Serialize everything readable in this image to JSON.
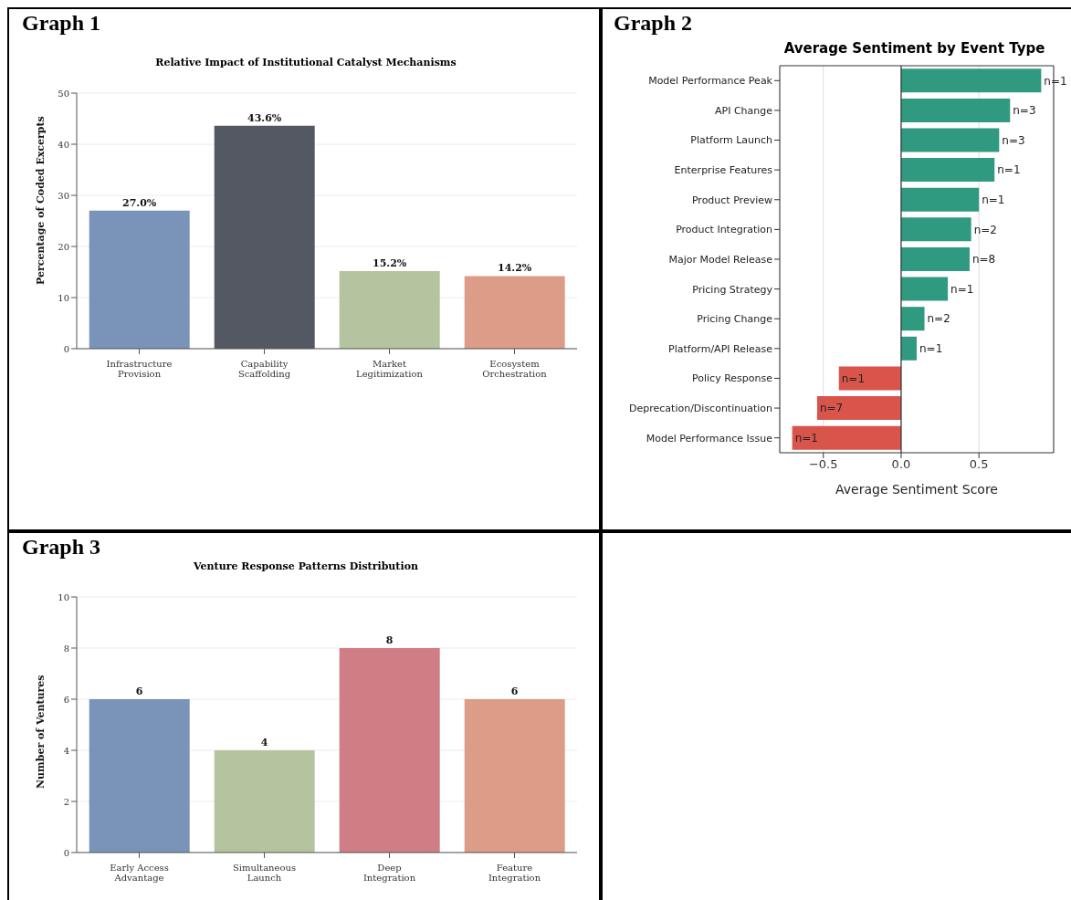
{
  "chart_data": [
    {
      "type": "bar",
      "annotations": [
        "Graph 1"
      ],
      "title": "Relative Impact of Institutional Catalyst Mechanisms",
      "ylabel": "Percentage of Coded Excerpts",
      "categories": [
        "Infrastructure\nProvision",
        "Capability\nScaffolding",
        "Market\nLegitimization",
        "Ecosystem\nOrchestration"
      ],
      "values": [
        27.0,
        43.6,
        15.2,
        14.2
      ],
      "value_labels": [
        "27.0%",
        "43.6%",
        "15.2%",
        "14.2%"
      ],
      "colors": [
        "#7a93b9",
        "#545863",
        "#b4c49f",
        "#dd9c88"
      ],
      "ylim": [
        0,
        50
      ],
      "yticks": [
        0,
        10,
        20,
        30,
        40,
        50
      ],
      "grid": "y"
    },
    {
      "type": "bar",
      "orientation": "horizontal",
      "title": "Average Sentiment by Event Type",
      "xlabel": "Average Sentiment Score",
      "categories": [
        "Model Performance Peak",
        "API Change",
        "Platform Launch",
        "Enterprise Features",
        "Product Preview",
        "Product Integration",
        "Major Model Release",
        "Pricing Strategy",
        "Pricing Change",
        "Platform/API Release",
        "Policy Response",
        "Deprecation/Discontinuation",
        "Model Performance Issue"
      ],
      "values": [
        0.9,
        0.7,
        0.63,
        0.6,
        0.5,
        0.45,
        0.44,
        0.3,
        0.15,
        0.1,
        -0.4,
        -0.54,
        -0.7
      ],
      "colors": [
        "#2f9a80",
        "#2f9a80",
        "#2f9a80",
        "#2f9a80",
        "#2f9a80",
        "#2f9a80",
        "#2f9a80",
        "#2f9a80",
        "#2f9a80",
        "#2f9a80",
        "#d9554b",
        "#d9554b",
        "#d9554b"
      ],
      "xlim": [
        -0.78,
        0.98
      ],
      "xticks": [
        {
          "value": -0.5,
          "label": "−0.5"
        },
        {
          "value": 0,
          "label": "0.0"
        },
        {
          "value": 0.5,
          "label": "0.5"
        }
      ],
      "grid": "x",
      "ref_lines": [
        {
          "axis": "x",
          "value": 0,
          "color": "#333333"
        }
      ],
      "annotations": [
        "Graph 2",
        {
          "text": "n=1",
          "x": 0.9,
          "y": "Model Performance Peak"
        },
        {
          "text": "n=3",
          "x": 0.7,
          "y": "API Change"
        },
        {
          "text": "n=3",
          "x": 0.63,
          "y": "Platform Launch"
        },
        {
          "text": "n=1",
          "x": 0.6,
          "y": "Enterprise Features"
        },
        {
          "text": "n=1",
          "x": 0.5,
          "y": "Product Preview"
        },
        {
          "text": "n=2",
          "x": 0.45,
          "y": "Product Integration"
        },
        {
          "text": "n=8",
          "x": 0.44,
          "y": "Major Model Release"
        },
        {
          "text": "n=1",
          "x": 0.3,
          "y": "Pricing Strategy"
        },
        {
          "text": "n=2",
          "x": 0.15,
          "y": "Pricing Change"
        },
        {
          "text": "n=1",
          "x": 0.1,
          "y": "Platform/API Release"
        },
        {
          "text": "n=1",
          "x": -0.4,
          "y": "Policy Response"
        },
        {
          "text": "n=7",
          "x": -0.54,
          "y": "Deprecation/Discontinuation"
        },
        {
          "text": "n=1",
          "x": -0.7,
          "y": "Model Performance Issue"
        }
      ]
    },
    {
      "type": "bar",
      "annotations": [
        "Graph 3"
      ],
      "title": "Venture Response Patterns Distribution",
      "ylabel": "Number of Ventures",
      "categories": [
        "Early Access\nAdvantage",
        "Simultaneous\nLaunch",
        "Deep\nIntegration",
        "Feature\nIntegration"
      ],
      "values": [
        6,
        4,
        8,
        6
      ],
      "data_labels": true,
      "colors": [
        "#7a93b9",
        "#b4c49f",
        "#ce7e84",
        "#dd9c88"
      ],
      "ylim": [
        0,
        10
      ],
      "yticks": [
        0,
        2,
        4,
        6,
        8,
        10
      ],
      "grid": "y"
    }
  ]
}
